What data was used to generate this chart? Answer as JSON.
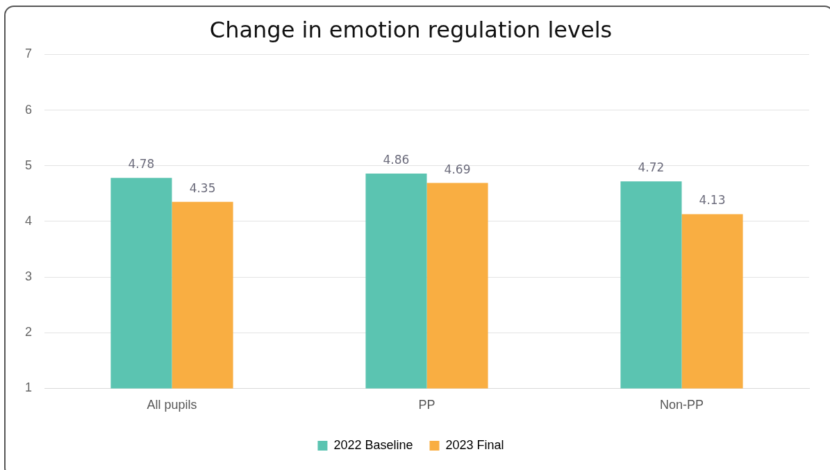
{
  "chart_data": {
    "type": "bar",
    "title": "Change in emotion regulation levels",
    "categories": [
      "All pupils",
      "PP",
      "Non-PP"
    ],
    "series": [
      {
        "name": "2022 Baseline",
        "color": "#5bc4b1",
        "values": [
          4.78,
          4.86,
          4.72
        ]
      },
      {
        "name": "2023 Final",
        "color": "#f9ae42",
        "values": [
          4.35,
          4.69,
          4.13
        ]
      }
    ],
    "ylim": [
      1,
      7
    ],
    "yticks": [
      1,
      2,
      3,
      4,
      5,
      6,
      7
    ],
    "grid": "y",
    "legend": "bottom",
    "data_labels": true
  }
}
